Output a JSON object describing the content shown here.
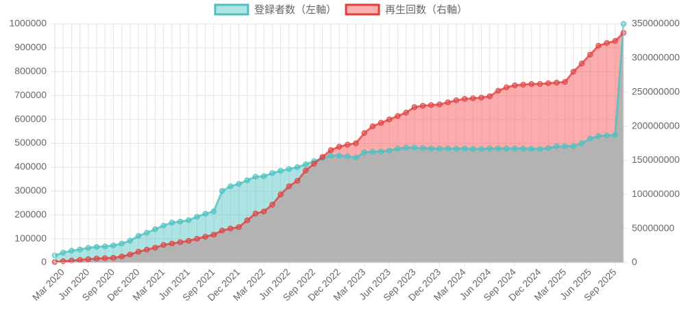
{
  "chart_data": {
    "type": "line",
    "categories": [
      null,
      "Mar 2020",
      null,
      null,
      "Jun 2020",
      null,
      null,
      "Sep 2020",
      null,
      null,
      "Dec 2020",
      null,
      null,
      "Mar 2021",
      null,
      null,
      "Jun 2021",
      null,
      null,
      "Sep 2021",
      null,
      null,
      "Dec 2021",
      null,
      null,
      "Mar 2022",
      null,
      null,
      "Jun 2022",
      null,
      null,
      "Sep 2022",
      null,
      null,
      "Dec 2022",
      null,
      null,
      "Mar 2023",
      null,
      null,
      "Jun 2023",
      null,
      null,
      "Sep 2023",
      null,
      null,
      "Dec 2023",
      null,
      null,
      "Mar 2024",
      null,
      null,
      "Jun 2024",
      null,
      null,
      "Sep 2024",
      null,
      null,
      "Dec 2024",
      null,
      null,
      "Mar 2025",
      null,
      null,
      "Jun 2025",
      null,
      null,
      "Sep 2025",
      null
    ],
    "series": [
      {
        "name": "登録者数（左軸）",
        "color": "#4bc0c0",
        "axis": "y",
        "values": [
          30000,
          42000,
          50000,
          55000,
          62000,
          66000,
          68000,
          72000,
          80000,
          92000,
          112000,
          125000,
          140000,
          155000,
          168000,
          172000,
          178000,
          192000,
          205000,
          215000,
          300000,
          320000,
          330000,
          345000,
          360000,
          362000,
          375000,
          385000,
          392000,
          400000,
          412000,
          425000,
          438000,
          448000,
          448000,
          446000,
          440000,
          462000,
          465000,
          466000,
          470000,
          478000,
          482000,
          482000,
          480000,
          478000,
          478000,
          478000,
          477000,
          478000,
          476000,
          476000,
          478000,
          478000,
          478000,
          478000,
          478000,
          477000,
          476000,
          480000,
          487000,
          487000,
          488000,
          500000,
          520000,
          530000,
          533000,
          535000,
          1000000
        ]
      },
      {
        "name": "再生回数（右軸）",
        "color": "#e83a3a",
        "axis": "y2",
        "values": [
          1000000,
          2000000,
          3000000,
          4000000,
          5000000,
          6000000,
          6500000,
          7000000,
          9000000,
          12000000,
          16000000,
          19000000,
          22000000,
          26000000,
          28000000,
          30000000,
          32000000,
          35000000,
          38000000,
          41000000,
          47000000,
          50000000,
          52000000,
          62000000,
          72000000,
          75000000,
          85000000,
          100000000,
          112000000,
          120000000,
          135000000,
          145000000,
          155000000,
          165000000,
          170000000,
          173000000,
          175000000,
          190000000,
          200000000,
          205000000,
          210000000,
          215000000,
          220000000,
          228000000,
          230000000,
          231000000,
          232000000,
          235000000,
          238000000,
          240000000,
          241000000,
          242000000,
          244000000,
          252000000,
          257000000,
          260000000,
          261000000,
          262000000,
          262000000,
          263000000,
          264000000,
          265000000,
          280000000,
          292000000,
          305000000,
          318000000,
          322000000,
          325000000,
          337000000
        ]
      }
    ],
    "ylim": [
      0,
      1000000
    ],
    "yticks": [
      0,
      100000,
      200000,
      300000,
      400000,
      500000,
      600000,
      700000,
      800000,
      900000,
      1000000
    ],
    "y2lim": [
      0,
      350000000
    ],
    "y2ticks": [
      0,
      50000000,
      100000000,
      150000000,
      200000000,
      250000000,
      300000000,
      350000000
    ],
    "grid": true,
    "legend": "top"
  }
}
